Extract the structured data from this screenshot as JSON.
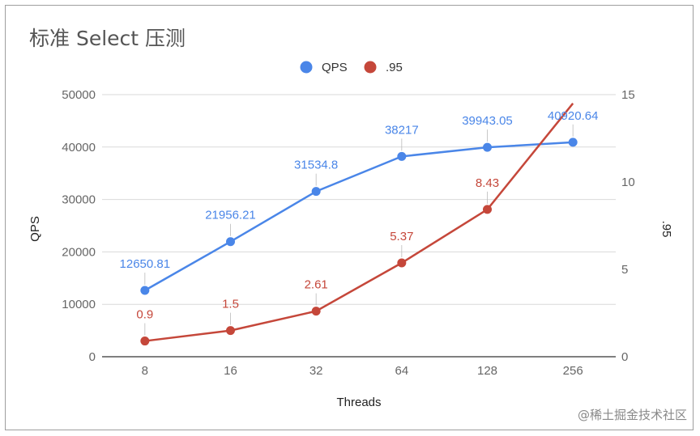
{
  "chart_data": {
    "type": "line",
    "title": "标准 Select 压测",
    "categories": [
      "8",
      "16",
      "32",
      "64",
      "128",
      "256"
    ],
    "xlabel": "Threads",
    "ylabel": "QPS",
    "y2label": ".95",
    "ylim": [
      0,
      50000
    ],
    "y2lim": [
      0,
      15
    ],
    "yticks": [
      "0",
      "10000",
      "20000",
      "30000",
      "40000",
      "50000"
    ],
    "y2ticks": [
      "0",
      "5",
      "10",
      "15"
    ],
    "legend_position": "top",
    "grid": true,
    "series": [
      {
        "name": "QPS",
        "axis": "left",
        "color": "#4a86e8",
        "values": [
          12650.81,
          21956.21,
          31534.8,
          38217,
          39943.05,
          40920.64
        ],
        "labels": [
          "12650.81",
          "21956.21",
          "31534.8",
          "38217",
          "39943.05",
          "40920.64"
        ]
      },
      {
        "name": ".95",
        "axis": "right",
        "color": "#c5473a",
        "values": [
          0.9,
          1.5,
          2.61,
          5.37,
          8.43,
          14.5
        ],
        "labels": [
          "0.9",
          "1.5",
          "2.61",
          "5.37",
          "8.43",
          ""
        ]
      }
    ]
  },
  "watermark": "@稀土掘金技术社区"
}
